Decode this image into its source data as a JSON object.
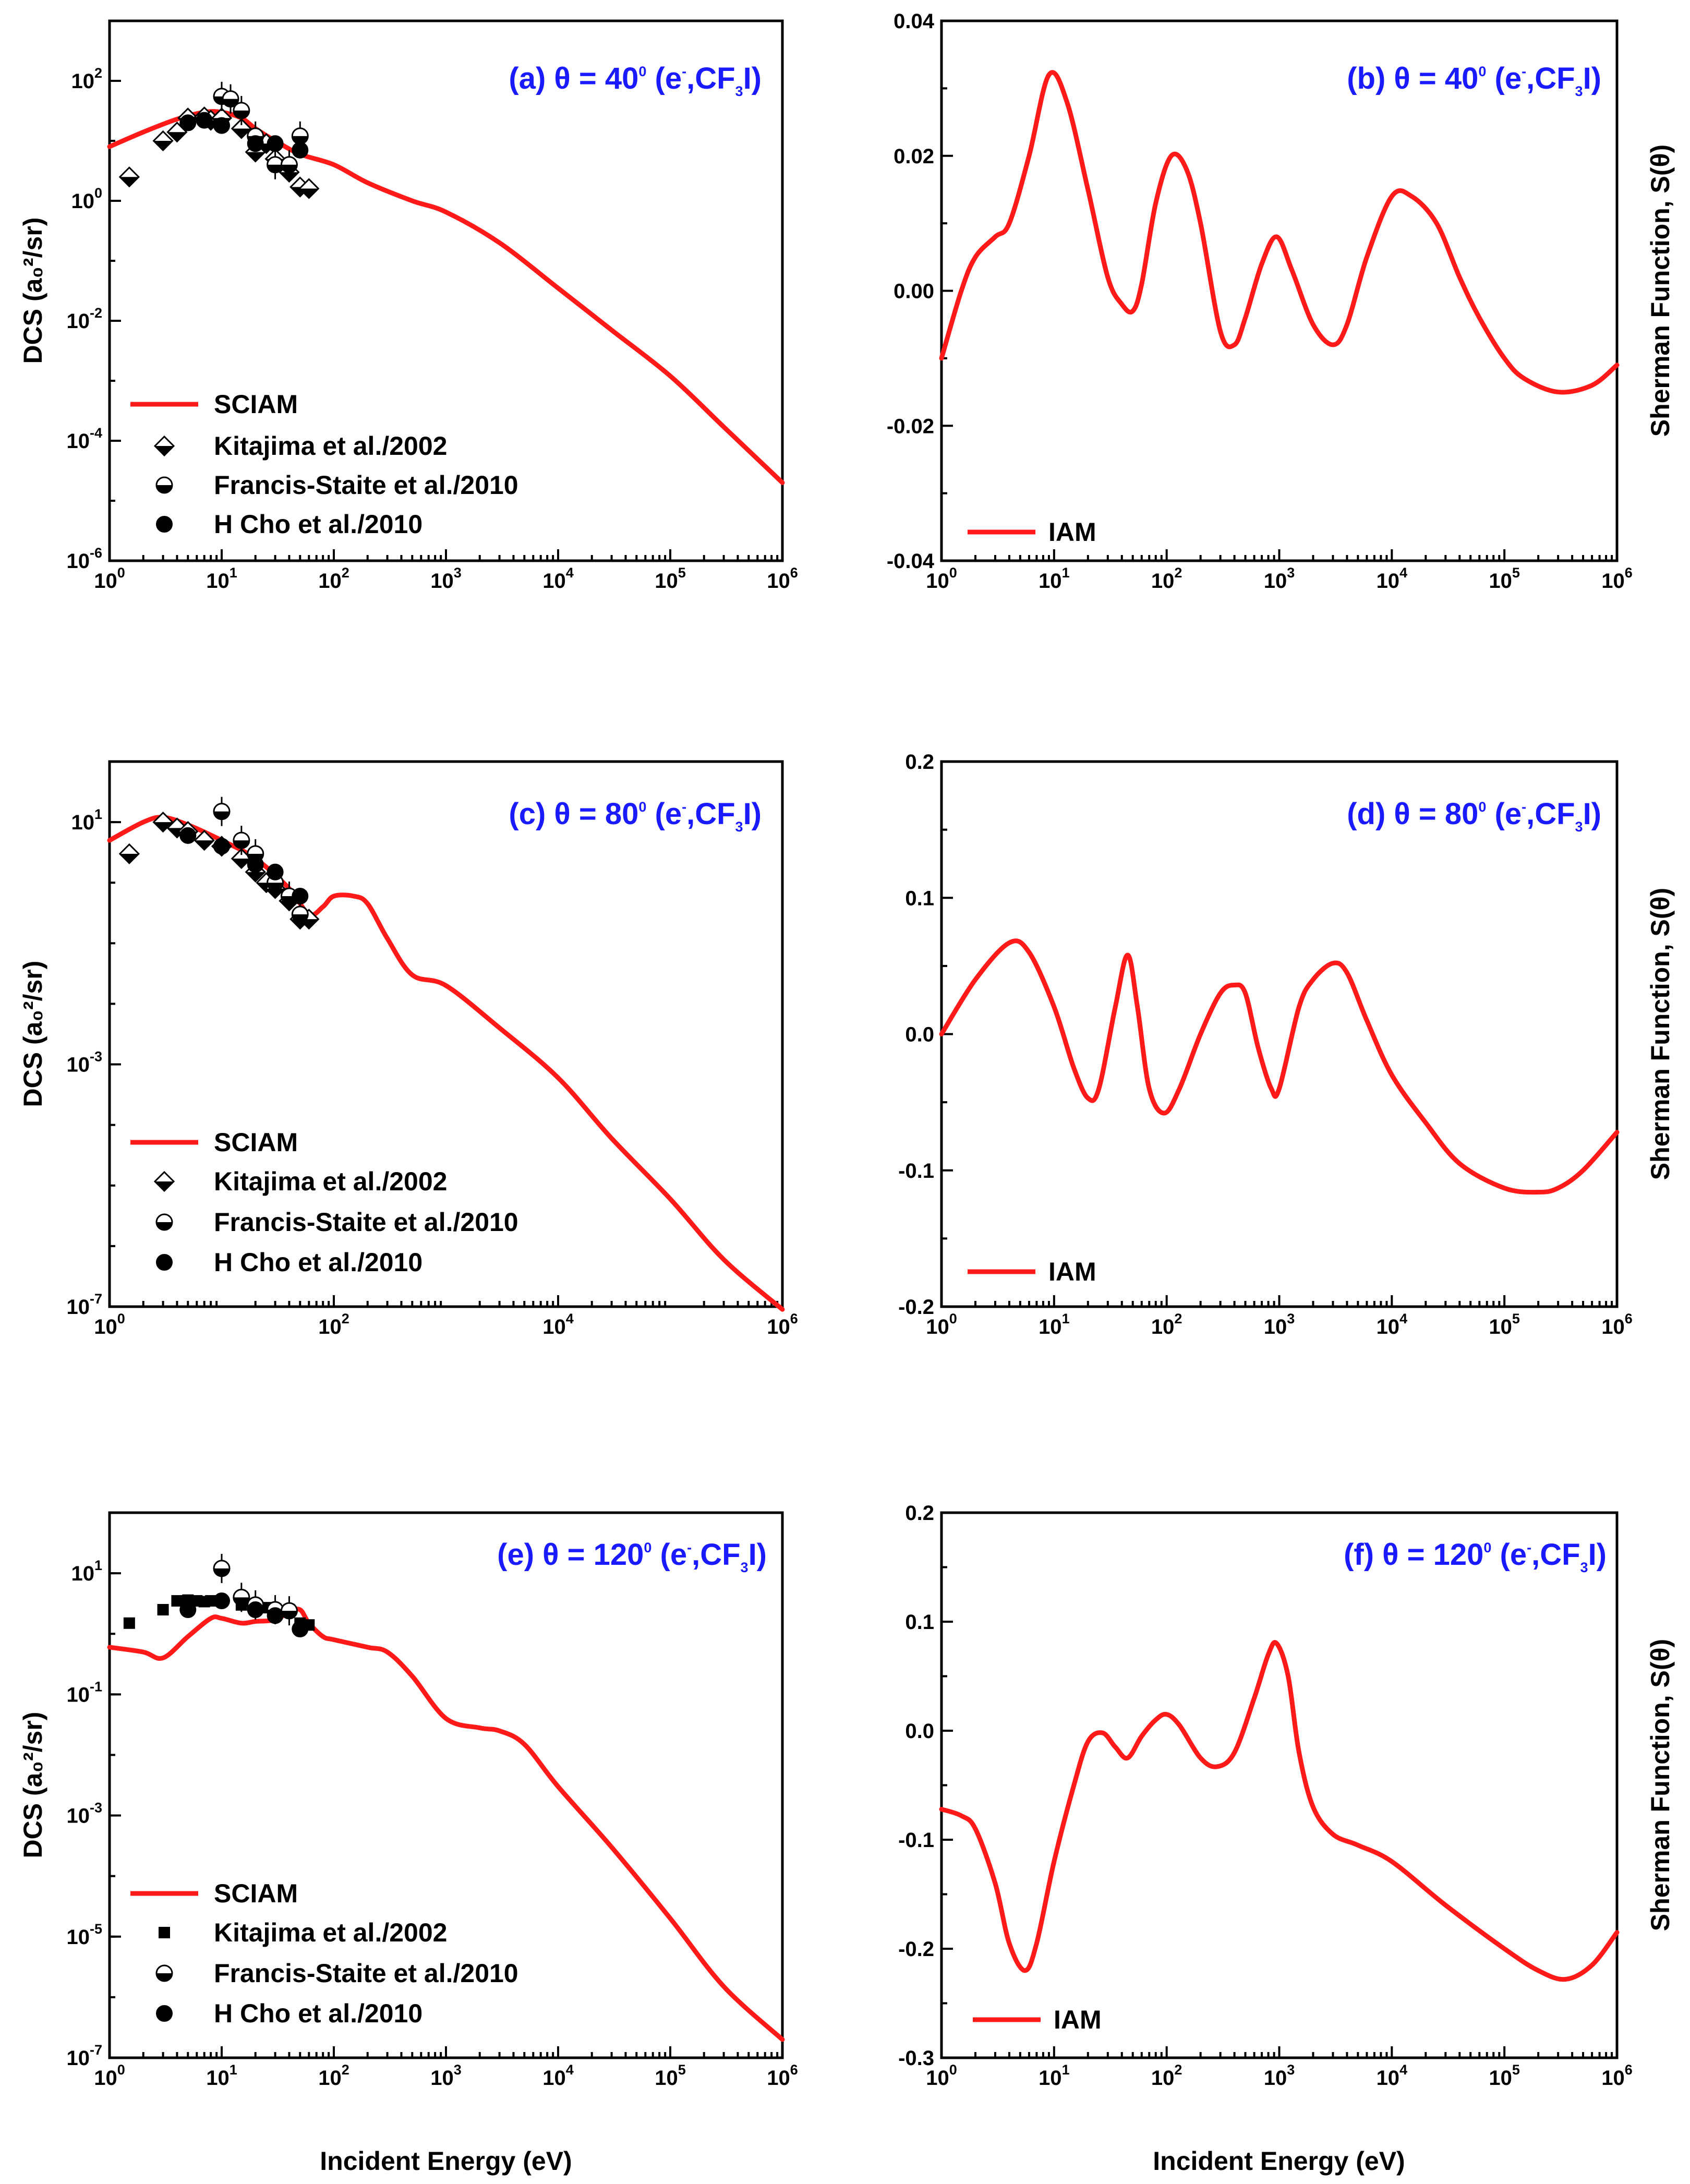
{
  "figure": {
    "xlabel": "Incident Energy (eV)",
    "panel_ylabel_left": "DCS (a",
    "colors": {
      "theory": "#ff1a1a",
      "title": "#1a1aff",
      "marker": "#000000"
    }
  },
  "chart_data": [
    {
      "id": "a",
      "type": "line",
      "yscale": "log",
      "title": "(a) θ = 40⁰ (e⁻,CF₃I)",
      "title_parts": [
        "(a) θ = 40",
        "0",
        " (e",
        "-",
        ",CF",
        "3",
        "I)"
      ],
      "ylabel": "DCS (a₀²/sr)",
      "xlabel": "Incident Energy (eV)",
      "xlim": [
        1,
        1000000
      ],
      "ylim": [
        1e-06,
        1000
      ],
      "xticks": [
        {
          "base": "10",
          "exp": "0"
        },
        {
          "base": "10",
          "exp": "1"
        },
        {
          "base": "10",
          "exp": "2"
        },
        {
          "base": "10",
          "exp": "3"
        },
        {
          "base": "10",
          "exp": "4"
        },
        {
          "base": "10",
          "exp": "5"
        },
        {
          "base": "10",
          "exp": "6"
        }
      ],
      "yticks": [
        {
          "value": 1e-06,
          "base": "10",
          "exp": "-6"
        },
        {
          "value": 0.0001,
          "base": "10",
          "exp": "-4"
        },
        {
          "value": 0.01,
          "base": "10",
          "exp": "-2"
        },
        {
          "value": 1,
          "base": "10",
          "exp": "0"
        },
        {
          "value": 100,
          "base": "10",
          "exp": "2"
        }
      ],
      "series": [
        {
          "name": "SCIAM",
          "kind": "line",
          "x": [
            1,
            2,
            4,
            7,
            10,
            15,
            20,
            30,
            50,
            100,
            200,
            500,
            1000,
            3000,
            10000,
            30000,
            100000,
            300000,
            1000000
          ],
          "y": [
            8,
            14,
            23,
            30,
            30,
            24,
            16,
            10,
            6,
            4,
            2,
            1,
            0.65,
            0.2,
            0.035,
            0.007,
            0.0012,
            0.00017,
            2e-05
          ]
        },
        {
          "name": "Kitajima et al./2002",
          "kind": "scatter",
          "marker": "half-diamond",
          "x": [
            1.5,
            3,
            4,
            5,
            7,
            8,
            10,
            15,
            20,
            25,
            30,
            40,
            50,
            60
          ],
          "y": [
            2.5,
            10,
            14,
            24,
            25,
            22,
            24,
            16,
            6.5,
            9,
            5,
            3,
            1.7,
            1.6
          ]
        },
        {
          "name": "Francis-Staite et al./2010",
          "kind": "scatter",
          "marker": "half-circle",
          "x": [
            10,
            12,
            15,
            20,
            30,
            40,
            50
          ],
          "y": [
            55,
            50,
            32,
            12,
            4,
            4,
            12
          ]
        },
        {
          "name": "H Cho et al./2010",
          "kind": "scatter",
          "marker": "circle",
          "x": [
            5,
            7,
            10,
            20,
            30,
            50
          ],
          "y": [
            20,
            22,
            18,
            9,
            9,
            7
          ]
        }
      ]
    },
    {
      "id": "b",
      "type": "line",
      "yscale": "linear",
      "title": "(b) θ = 40⁰ (e⁻,CF₃I)",
      "title_parts": [
        "(b) θ = 40",
        "0",
        "  (e",
        "-",
        ",CF",
        "3",
        "I)"
      ],
      "ylabel": "Sherman Function, S(θ)",
      "xlabel": "Incident Energy (eV)",
      "xlim": [
        1,
        1000000
      ],
      "ylim": [
        -0.04,
        0.04
      ],
      "xticks": [
        {
          "base": "10",
          "exp": "0"
        },
        {
          "base": "10",
          "exp": "1"
        },
        {
          "base": "10",
          "exp": "2"
        },
        {
          "base": "10",
          "exp": "3"
        },
        {
          "base": "10",
          "exp": "4"
        },
        {
          "base": "10",
          "exp": "5"
        },
        {
          "base": "10",
          "exp": "6"
        }
      ],
      "yticks": [
        {
          "value": -0.04,
          "label": "-0.04"
        },
        {
          "value": -0.02,
          "label": "-0.02"
        },
        {
          "value": 0,
          "label": "0.00"
        },
        {
          "value": 0.02,
          "label": "0.02"
        },
        {
          "value": 0.04,
          "label": "0.04"
        }
      ],
      "series": [
        {
          "name": "IAM",
          "kind": "line",
          "x": [
            1,
            1.5,
            2,
            3,
            4,
            6,
            9,
            13,
            20,
            30,
            40,
            50,
            60,
            80,
            110,
            150,
            200,
            300,
            400,
            500,
            700,
            950,
            1300,
            2000,
            3000,
            4000,
            6000,
            10000,
            15000,
            25000,
            40000,
            60000,
            100000,
            150000,
            300000,
            600000,
            1000000
          ],
          "y": [
            -0.01,
            0,
            0.005,
            0.008,
            0.01,
            0.02,
            0.032,
            0.028,
            0.015,
            0.002,
            -0.002,
            -0.003,
            0.001,
            0.013,
            0.02,
            0.018,
            0.01,
            -0.006,
            -0.008,
            -0.004,
            0.004,
            0.008,
            0.003,
            -0.005,
            -0.008,
            -0.005,
            0.005,
            0.014,
            0.014,
            0.01,
            0.002,
            -0.004,
            -0.01,
            -0.013,
            -0.015,
            -0.014,
            -0.011
          ]
        }
      ]
    },
    {
      "id": "c",
      "type": "line",
      "yscale": "log",
      "title": "(c) θ = 80⁰ (e⁻,CF₃I)",
      "title_parts": [
        "(c) θ = 80",
        "0",
        "  (e",
        "-",
        ",CF",
        "3",
        "I)"
      ],
      "ylabel": "DCS (a₀²/sr)",
      "xlabel": "Incident Energy (eV)",
      "xlim": [
        1,
        1000000
      ],
      "ylim": [
        1e-07,
        100
      ],
      "xticks": [
        {
          "base": "10",
          "exp": "0"
        },
        {
          "base": "10",
          "exp": "2"
        },
        {
          "base": "10",
          "exp": "4"
        },
        {
          "base": "10",
          "exp": "6"
        }
      ],
      "yticks": [
        {
          "value": 1e-07,
          "base": "10",
          "exp": "-7"
        },
        {
          "value": 0.001,
          "base": "10",
          "exp": "-3"
        },
        {
          "value": 10,
          "base": "10",
          "exp": "1"
        }
      ],
      "series": [
        {
          "name": "SCIAM",
          "kind": "line",
          "x": [
            1,
            2,
            3,
            5,
            10,
            20,
            40,
            60,
            80,
            100,
            150,
            200,
            300,
            500,
            1000,
            3000,
            10000,
            30000,
            100000,
            300000,
            1000000
          ],
          "y": [
            5,
            10,
            12,
            9,
            5,
            2.5,
            0.8,
            0.3,
            0.4,
            0.6,
            0.6,
            0.45,
            0.12,
            0.03,
            0.02,
            0.004,
            0.0006,
            6e-05,
            6e-06,
            6e-07,
            9e-08
          ]
        },
        {
          "name": "Kitajima et al./2002",
          "kind": "scatter",
          "marker": "half-diamond",
          "x": [
            1.5,
            3,
            4,
            5,
            7,
            10,
            15,
            20,
            25,
            30,
            40,
            50,
            60
          ],
          "y": [
            3,
            10,
            8,
            7,
            5,
            4,
            2.5,
            1.5,
            1,
            0.8,
            0.5,
            0.25,
            0.25
          ]
        },
        {
          "name": "Francis-Staite et al./2010",
          "kind": "scatter",
          "marker": "half-circle",
          "x": [
            10,
            15,
            20,
            30,
            40,
            50
          ],
          "y": [
            15,
            5,
            3,
            1,
            0.6,
            0.3
          ]
        },
        {
          "name": "H Cho et al./2010",
          "kind": "scatter",
          "marker": "circle",
          "x": [
            5,
            10,
            20,
            30,
            50
          ],
          "y": [
            6,
            4,
            2,
            1.5,
            0.6
          ]
        }
      ]
    },
    {
      "id": "d",
      "type": "line",
      "yscale": "linear",
      "title": "(d) θ = 80⁰ (e⁻,CF₃I)",
      "title_parts": [
        "(d) θ = 80",
        "0",
        "  (e",
        "-",
        ",CF",
        "3",
        "I)"
      ],
      "ylabel": "Sherman Function, S(θ)",
      "xlabel": "Incident Energy (eV)",
      "xlim": [
        1,
        1000000
      ],
      "ylim": [
        -0.2,
        0.2
      ],
      "xticks": [
        {
          "base": "10",
          "exp": "0"
        },
        {
          "base": "10",
          "exp": "1"
        },
        {
          "base": "10",
          "exp": "2"
        },
        {
          "base": "10",
          "exp": "3"
        },
        {
          "base": "10",
          "exp": "4"
        },
        {
          "base": "10",
          "exp": "5"
        },
        {
          "base": "10",
          "exp": "6"
        }
      ],
      "yticks": [
        {
          "value": -0.2,
          "label": "-0.2"
        },
        {
          "value": -0.1,
          "label": "-0.1"
        },
        {
          "value": 0,
          "label": "0.0"
        },
        {
          "value": 0.1,
          "label": "0.1"
        },
        {
          "value": 0.2,
          "label": "0.2"
        }
      ],
      "series": [
        {
          "name": "IAM",
          "kind": "line",
          "x": [
            1,
            2,
            4,
            6,
            10,
            15,
            20,
            25,
            35,
            45,
            55,
            70,
            95,
            130,
            200,
            300,
            400,
            500,
            650,
            850,
            1000,
            1500,
            2000,
            3000,
            4000,
            6000,
            10000,
            20000,
            40000,
            100000,
            200000,
            300000,
            500000,
            1000000
          ],
          "y": [
            0,
            0.04,
            0.067,
            0.06,
            0.02,
            -0.025,
            -0.047,
            -0.04,
            0.02,
            0.058,
            0.02,
            -0.04,
            -0.058,
            -0.04,
            0,
            0.03,
            0.036,
            0.03,
            -0.01,
            -0.04,
            -0.04,
            0.02,
            0.04,
            0.052,
            0.045,
            0.01,
            -0.03,
            -0.065,
            -0.095,
            -0.113,
            -0.116,
            -0.113,
            -0.1,
            -0.072
          ]
        }
      ]
    },
    {
      "id": "e",
      "type": "line",
      "yscale": "log",
      "title": "(e) θ = 120⁰ (e⁻,CF₃I)",
      "title_parts": [
        "(e) θ = 120",
        "0",
        "  (e",
        "-",
        ",CF",
        "3",
        "I)"
      ],
      "ylabel": "DCS (a₀²/sr)",
      "xlabel": "Incident Energy (eV)",
      "xlim": [
        1,
        1000000
      ],
      "ylim": [
        1e-07,
        100
      ],
      "xticks": [
        {
          "base": "10",
          "exp": "0"
        },
        {
          "base": "10",
          "exp": "1"
        },
        {
          "base": "10",
          "exp": "2"
        },
        {
          "base": "10",
          "exp": "3"
        },
        {
          "base": "10",
          "exp": "4"
        },
        {
          "base": "10",
          "exp": "5"
        },
        {
          "base": "10",
          "exp": "6"
        }
      ],
      "yticks": [
        {
          "value": 1e-07,
          "base": "10",
          "exp": "-7"
        },
        {
          "value": 1e-05,
          "base": "10",
          "exp": "-5"
        },
        {
          "value": 0.001,
          "base": "10",
          "exp": "-3"
        },
        {
          "value": 0.1,
          "base": "10",
          "exp": "-1"
        },
        {
          "value": 10,
          "base": "10",
          "exp": "1"
        }
      ],
      "series": [
        {
          "name": "SCIAM",
          "kind": "line",
          "x": [
            1,
            2,
            3,
            5,
            8,
            10,
            15,
            20,
            30,
            40,
            50,
            60,
            80,
            100,
            200,
            300,
            500,
            1000,
            2000,
            3000,
            5000,
            10000,
            30000,
            100000,
            300000,
            1000000
          ],
          "y": [
            0.6,
            0.5,
            0.4,
            0.9,
            1.8,
            1.8,
            1.5,
            1.6,
            1.7,
            2.3,
            2.5,
            1.5,
            0.9,
            0.8,
            0.6,
            0.5,
            0.2,
            0.04,
            0.028,
            0.025,
            0.015,
            0.003,
            0.0003,
            2e-05,
            1.5e-06,
            2e-07
          ]
        },
        {
          "name": "Kitajima et al./2002",
          "kind": "scatter",
          "marker": "square",
          "x": [
            1.5,
            3,
            4,
            5,
            6,
            7,
            8,
            10,
            15,
            20,
            25,
            30,
            40,
            50,
            60
          ],
          "y": [
            1.5,
            2.5,
            3.5,
            3.6,
            3.5,
            3.4,
            3.5,
            3.5,
            3,
            2.8,
            2.7,
            2.6,
            2.5,
            1.5,
            1.4
          ]
        },
        {
          "name": "Francis-Staite et al./2010",
          "kind": "scatter",
          "marker": "half-circle",
          "x": [
            10,
            15,
            20,
            30,
            40
          ],
          "y": [
            12,
            4,
            3,
            2.5,
            2.4
          ]
        },
        {
          "name": "H Cho et al./2010",
          "kind": "scatter",
          "marker": "circle",
          "x": [
            5,
            10,
            20,
            30,
            50
          ],
          "y": [
            2.5,
            3.5,
            2.5,
            2,
            1.2
          ]
        }
      ]
    },
    {
      "id": "f",
      "type": "line",
      "yscale": "linear",
      "title": "(f) θ = 120⁰ (e⁻,CF₃I)",
      "title_parts": [
        "(f) θ = 120",
        "0",
        "  (e",
        "-",
        ",CF",
        "3",
        "I)"
      ],
      "ylabel": "Sherman Function, S(θ)",
      "xlabel": "Incident Energy (eV)",
      "xlim": [
        1,
        1000000
      ],
      "ylim": [
        -0.3,
        0.2
      ],
      "xticks": [
        {
          "base": "10",
          "exp": "0"
        },
        {
          "base": "10",
          "exp": "1"
        },
        {
          "base": "10",
          "exp": "2"
        },
        {
          "base": "10",
          "exp": "3"
        },
        {
          "base": "10",
          "exp": "4"
        },
        {
          "base": "10",
          "exp": "5"
        },
        {
          "base": "10",
          "exp": "6"
        }
      ],
      "yticks": [
        {
          "value": -0.3,
          "label": "-0.3"
        },
        {
          "value": -0.2,
          "label": "-0.2"
        },
        {
          "value": -0.1,
          "label": "-0.1"
        },
        {
          "value": 0,
          "label": "0.0"
        },
        {
          "value": 0.1,
          "label": "0.1"
        },
        {
          "value": 0.2,
          "label": "0.2"
        }
      ],
      "series": [
        {
          "name": "IAM",
          "kind": "line",
          "x": [
            1,
            1.5,
            2,
            3,
            4,
            5.5,
            7,
            10,
            15,
            20,
            27,
            35,
            45,
            60,
            80,
            100,
            130,
            200,
            280,
            400,
            600,
            800,
            950,
            1200,
            1500,
            2000,
            3000,
            5000,
            10000,
            30000,
            100000,
            200000,
            350000,
            600000,
            1000000
          ],
          "y": [
            -0.072,
            -0.078,
            -0.09,
            -0.14,
            -0.195,
            -0.22,
            -0.195,
            -0.12,
            -0.05,
            -0.01,
            -0.002,
            -0.015,
            -0.025,
            -0.005,
            0.01,
            0.015,
            0.005,
            -0.025,
            -0.033,
            -0.02,
            0.03,
            0.07,
            0.08,
            0.05,
            -0.02,
            -0.07,
            -0.095,
            -0.105,
            -0.12,
            -0.16,
            -0.2,
            -0.22,
            -0.228,
            -0.215,
            -0.185
          ]
        }
      ]
    }
  ]
}
